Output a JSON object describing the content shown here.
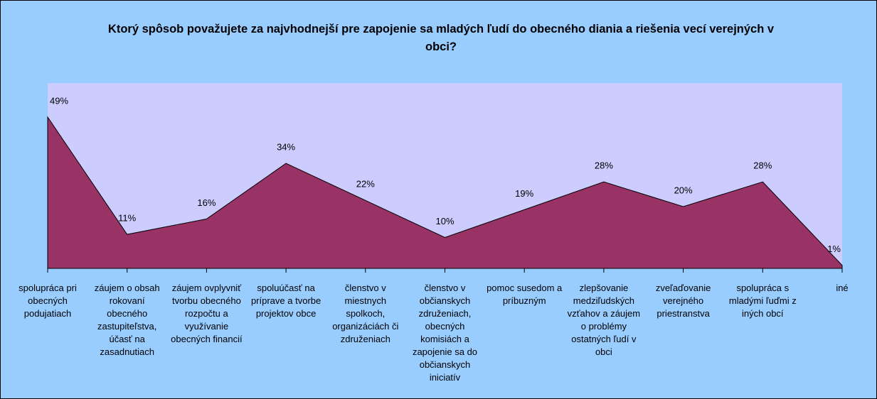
{
  "chart_data": {
    "type": "area",
    "title": "Ktorý spôsob považujete za najvhodnejší  pre zapojenie sa mladých ľudí do obecného diania a riešenia vecí verejných v obci?",
    "categories": [
      "spolupráca pri obecných podujatiach",
      "záujem o obsah rokovaní obecného zastupiteľstva, účasť na zasadnutiach",
      "záujem ovplyvniť tvorbu obecného rozpočtu a využívanie obecných financií",
      "spoluúčasť na príprave a tvorbe projektov obce",
      "členstvo v miestnych spolkoch, organizáciách či združeniach",
      "členstvo v občianskych združeniach, obecných komisiách a zapojenie sa do občianskych iniciatív",
      "pomoc susedom a príbuzným",
      "zlepšovanie medziľudských vzťahov a záujem o problémy ostatných ľudí v obci",
      "zveľaďovanie verejného priestranstva",
      "spolupráca s mladými ľuďmi z iných obcí",
      "iné"
    ],
    "values": [
      49,
      11,
      16,
      34,
      22,
      10,
      19,
      28,
      20,
      28,
      1
    ],
    "value_labels": [
      "49%",
      "11%",
      "16%",
      "34%",
      "22%",
      "10%",
      "19%",
      "28%",
      "20%",
      "28%",
      "1%"
    ],
    "color": "#993366",
    "ylim": [
      0,
      60
    ]
  }
}
